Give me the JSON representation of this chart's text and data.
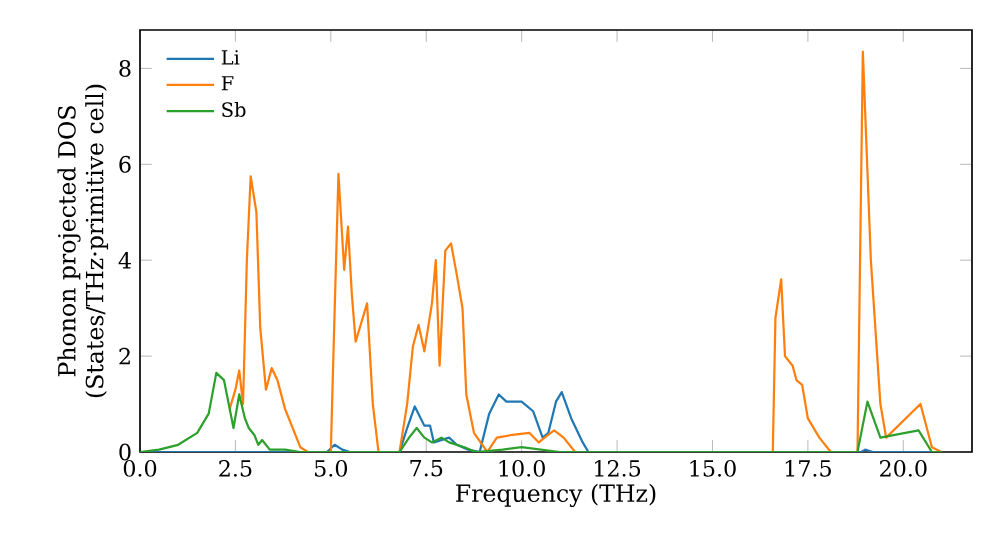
{
  "chart_data": {
    "type": "line",
    "xlabel": "Frequency (THz)",
    "ylabel": "Phonon projected DOS\n(States/THz·primitive cell)",
    "xlim": [
      0,
      21.8
    ],
    "ylim": [
      0,
      8.8
    ],
    "xticks": [
      {
        "value": 0,
        "label": "0.0"
      },
      {
        "value": 2.5,
        "label": "2.5"
      },
      {
        "value": 5,
        "label": "5.0"
      },
      {
        "value": 7.5,
        "label": "7.5"
      },
      {
        "value": 10,
        "label": "10.0"
      },
      {
        "value": 12.5,
        "label": "12.5"
      },
      {
        "value": 15,
        "label": "15.0"
      },
      {
        "value": 17.5,
        "label": "17.5"
      },
      {
        "value": 20,
        "label": "20.0"
      }
    ],
    "yticks": [
      0,
      2,
      4,
      6,
      8
    ],
    "grid": false,
    "legend": "top left",
    "marker": "none",
    "line_style": "solid",
    "series": [
      {
        "name": "Li",
        "color": "#1f77b4",
        "x": [
          0,
          4.9,
          5.1,
          5.3,
          5.5,
          6.8,
          7.0,
          7.2,
          7.45,
          7.6,
          7.7,
          7.9,
          8.1,
          8.3,
          8.6,
          8.9,
          9.15,
          9.4,
          9.6,
          10.0,
          10.3,
          10.55,
          10.7,
          10.9,
          11.05,
          11.3,
          11.6,
          11.75,
          18.9,
          19.0,
          19.2,
          21.0
        ],
        "values": [
          0,
          0,
          0.15,
          0.05,
          0,
          0,
          0.5,
          0.95,
          0.55,
          0.55,
          0.2,
          0.25,
          0.3,
          0.15,
          0.05,
          0,
          0.8,
          1.2,
          1.05,
          1.05,
          0.85,
          0.3,
          0.4,
          1.05,
          1.25,
          0.7,
          0.2,
          0,
          0,
          0.05,
          0,
          0
        ]
      },
      {
        "name": "F",
        "color": "#ff7f0e",
        "x": [
          2.35,
          2.5,
          2.6,
          2.7,
          2.8,
          2.9,
          3.05,
          3.15,
          3.3,
          3.45,
          3.6,
          3.8,
          4.0,
          4.2,
          4.4,
          5.0,
          5.05,
          5.2,
          5.35,
          5.45,
          5.55,
          5.65,
          5.8,
          5.95,
          6.1,
          6.25,
          6.8,
          7.0,
          7.15,
          7.3,
          7.45,
          7.65,
          7.75,
          7.85,
          8.0,
          8.15,
          8.3,
          8.45,
          8.55,
          8.75,
          9.1,
          9.35,
          9.7,
          10.2,
          10.45,
          10.6,
          10.85,
          11.1,
          11.4,
          16.58,
          16.65,
          16.8,
          16.9,
          17.1,
          17.2,
          17.35,
          17.5,
          17.8,
          18.1,
          18.8,
          18.94,
          19.15,
          19.4,
          19.55,
          20.45,
          20.75,
          21.0
        ],
        "values": [
          0.9,
          1.3,
          1.7,
          1.0,
          4.0,
          5.75,
          5.0,
          2.6,
          1.3,
          1.75,
          1.5,
          0.9,
          0.5,
          0.1,
          0,
          0,
          1.5,
          5.8,
          3.8,
          4.7,
          3.3,
          2.3,
          2.7,
          3.1,
          1.0,
          0,
          0,
          1.0,
          2.2,
          2.65,
          2.1,
          3.1,
          4.0,
          1.8,
          4.2,
          4.35,
          3.7,
          3.0,
          1.2,
          0.4,
          0,
          0.3,
          0.35,
          0.4,
          0.2,
          0.3,
          0.45,
          0.3,
          0,
          0,
          2.8,
          3.6,
          2.0,
          1.8,
          1.5,
          1.4,
          0.7,
          0.3,
          0,
          0,
          8.35,
          4.0,
          1.0,
          0.3,
          1.0,
          0.1,
          0
        ]
      },
      {
        "name": "Sb",
        "color": "#2ca02c",
        "x": [
          0,
          0.5,
          1.0,
          1.5,
          1.8,
          2.0,
          2.2,
          2.45,
          2.6,
          2.75,
          2.85,
          3.0,
          3.1,
          3.2,
          3.4,
          3.8,
          4.2,
          6.8,
          7.05,
          7.25,
          7.45,
          7.65,
          7.9,
          8.1,
          8.5,
          8.8,
          9.5,
          10.0,
          10.5,
          11.0,
          18.8,
          19.06,
          19.4,
          20.4,
          20.75,
          21.0
        ],
        "values": [
          0,
          0.05,
          0.15,
          0.4,
          0.8,
          1.65,
          1.5,
          0.5,
          1.2,
          0.7,
          0.5,
          0.35,
          0.15,
          0.25,
          0.05,
          0.05,
          0,
          0,
          0.3,
          0.5,
          0.3,
          0.2,
          0.3,
          0.2,
          0.1,
          0,
          0.05,
          0.1,
          0.05,
          0,
          0,
          1.05,
          0.3,
          0.45,
          0,
          0
        ]
      }
    ]
  }
}
